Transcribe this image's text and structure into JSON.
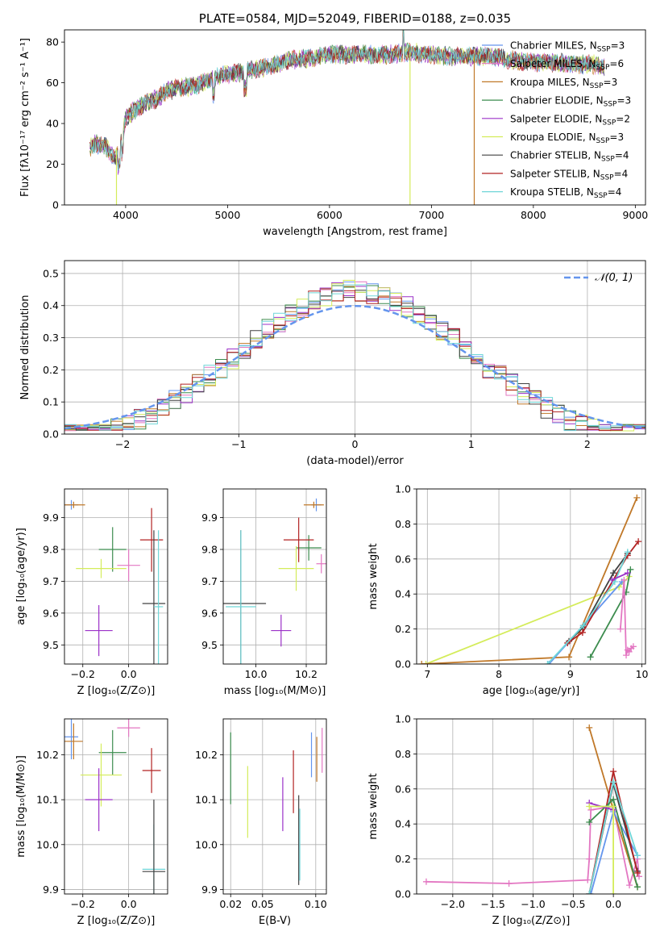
{
  "chart_data": [
    {
      "id": "spectrum",
      "type": "line",
      "title": "PLATE=0584, MJD=52049, FIBERID=0188, z=0.035",
      "xlabel": "wavelength [Angstrom, rest frame]",
      "ylabel": "Flux [fλ10⁻¹⁷ erg cm⁻² s⁻¹ A⁻¹]",
      "xlim": [
        3400,
        9100
      ],
      "ylim": [
        0,
        86
      ],
      "xticks": [
        4000,
        5000,
        6000,
        7000,
        8000,
        9000
      ],
      "yticks": [
        0,
        20,
        40,
        60,
        80
      ],
      "grid": false,
      "legend": "upper-right",
      "continuum": [
        [
          3650,
          28
        ],
        [
          3700,
          30
        ],
        [
          3800,
          29
        ],
        [
          3900,
          22
        ],
        [
          3950,
          30
        ],
        [
          4000,
          43
        ],
        [
          4100,
          47
        ],
        [
          4200,
          50
        ],
        [
          4300,
          52
        ],
        [
          4400,
          56
        ],
        [
          4500,
          57
        ],
        [
          4600,
          58
        ],
        [
          4700,
          59
        ],
        [
          4800,
          61
        ],
        [
          4900,
          63
        ],
        [
          5000,
          64
        ],
        [
          5200,
          66
        ],
        [
          5400,
          68
        ],
        [
          5600,
          71
        ],
        [
          5800,
          72
        ],
        [
          6000,
          74
        ],
        [
          6200,
          74
        ],
        [
          6400,
          74
        ],
        [
          6600,
          74
        ],
        [
          6800,
          75
        ],
        [
          7000,
          74
        ],
        [
          7200,
          73
        ],
        [
          7400,
          73
        ],
        [
          7600,
          73
        ],
        [
          7800,
          71
        ],
        [
          8000,
          70
        ],
        [
          8200,
          70
        ],
        [
          8400,
          69
        ],
        [
          8600,
          69
        ],
        [
          8700,
          68
        ]
      ],
      "series": [
        {
          "name": "Chabrier MILES, N_SSP=3",
          "label": "Chabrier MILES, N",
          "sub": "SSP",
          "suffix": "=3",
          "color": "#6495ED"
        },
        {
          "name": "Salpeter MILES, N_SSP=6",
          "label": "Salpeter MILES, N",
          "sub": "SSP",
          "suffix": "=6",
          "color": "#E377C2"
        },
        {
          "name": "Kroupa MILES, N_SSP=3",
          "label": "Kroupa MILES, N",
          "sub": "SSP",
          "suffix": "=3",
          "color": "#C07828"
        },
        {
          "name": "Chabrier ELODIE, N_SSP=3",
          "label": "Chabrier ELODIE, N",
          "sub": "SSP",
          "suffix": "=3",
          "color": "#3C8C4E"
        },
        {
          "name": "Salpeter ELODIE, N_SSP=2",
          "label": "Salpeter ELODIE, N",
          "sub": "SSP",
          "suffix": "=2",
          "color": "#9B30C8"
        },
        {
          "name": "Kroupa ELODIE, N_SSP=3",
          "label": "Kroupa ELODIE, N",
          "sub": "SSP",
          "suffix": "=3",
          "color": "#D4EC5A"
        },
        {
          "name": "Chabrier STELIB, N_SSP=4",
          "label": "Chabrier STELIB, N",
          "sub": "SSP",
          "suffix": "=4",
          "color": "#404040"
        },
        {
          "name": "Salpeter STELIB, N_SSP=4",
          "label": "Salpeter STELIB, N",
          "sub": "SSP",
          "suffix": "=4",
          "color": "#B22222"
        },
        {
          "name": "Kroupa STELIB, N_SSP=4",
          "label": "Kroupa STELIB, N",
          "sub": "SSP",
          "suffix": "=4",
          "color": "#6FD6D8"
        }
      ],
      "dropouts": [
        {
          "series": 5,
          "x": [
            3910,
            3920
          ],
          "ymin": 0,
          "ymax": 28
        },
        {
          "series": 5,
          "x": [
            6790,
            6800
          ],
          "ymin": 0,
          "ymax": 75
        },
        {
          "series": 2,
          "x": [
            7420,
            7430
          ],
          "ymin": 0,
          "ymax": 74
        }
      ]
    },
    {
      "id": "residuals",
      "type": "histogram",
      "xlabel": "(data-model)/error",
      "ylabel": "Normed distribution",
      "xlim": [
        -2.5,
        2.5
      ],
      "ylim": [
        0,
        0.54
      ],
      "xticks": [
        -2,
        -1,
        0,
        1,
        2
      ],
      "yticks": [
        0.0,
        0.1,
        0.2,
        0.3,
        0.4,
        0.5
      ],
      "grid": true,
      "legend": "upper-right",
      "bin_width": 0.1,
      "reference": {
        "name": "N(0,1)",
        "label": "𝒩(0, 1)",
        "color": "#6495ED",
        "mean": 0,
        "sigma": 1
      }
    },
    {
      "id": "age-vs-Z",
      "type": "errorbar",
      "xlabel": "Z [log₁₀(Z/Z⊙)]",
      "ylabel": "age  [log₁₀(age/yr)]",
      "xlim": [
        -0.28,
        0.17
      ],
      "ylim": [
        9.44,
        9.99
      ],
      "xticks": [
        -0.2,
        0.0
      ],
      "yticks": [
        9.5,
        9.6,
        9.7,
        9.8,
        9.9
      ],
      "grid": true,
      "points": [
        {
          "series": 0,
          "x": -0.25,
          "y": 9.94,
          "xerr": 0.03,
          "yerr": 0.015
        },
        {
          "series": 2,
          "x": -0.24,
          "y": 9.94,
          "xerr": 0.05,
          "yerr": 0.01
        },
        {
          "series": 3,
          "x": -0.07,
          "y": 9.8,
          "xerr": 0.06,
          "yerr": 0.07
        },
        {
          "series": 7,
          "x": 0.1,
          "y": 9.83,
          "xerr": 0.05,
          "yerr": 0.1
        },
        {
          "series": 1,
          "x": 0.0,
          "y": 9.75,
          "xerr": 0.05,
          "yerr": 0.05
        },
        {
          "series": 5,
          "x": -0.12,
          "y": 9.74,
          "xerr": 0.11,
          "yerr": 0.03
        },
        {
          "series": 6,
          "x": 0.11,
          "y": 9.63,
          "xerr": 0.05,
          "yerr": 0.23
        },
        {
          "series": 8,
          "x": 0.13,
          "y": 9.62,
          "xerr": 0.02,
          "yerr": 0.24
        },
        {
          "series": 4,
          "x": -0.13,
          "y": 9.545,
          "xerr": 0.06,
          "yerr": 0.08
        }
      ]
    },
    {
      "id": "age-vs-mass",
      "type": "errorbar",
      "xlabel": "mass [log₁₀(M/M⊙)]",
      "ylabel": "",
      "xlim": [
        9.87,
        10.28
      ],
      "ylim": [
        9.44,
        9.99
      ],
      "xticks": [
        10.0,
        10.2
      ],
      "yticks": [
        9.5,
        9.6,
        9.7,
        9.8,
        9.9
      ],
      "grid": true,
      "points": [
        {
          "series": 0,
          "x": 10.24,
          "y": 9.94,
          "xerr": 0.02,
          "yerr": 0.02
        },
        {
          "series": 2,
          "x": 10.23,
          "y": 9.94,
          "xerr": 0.04,
          "yerr": 0.01
        },
        {
          "series": 3,
          "x": 10.21,
          "y": 9.805,
          "xerr": 0.05,
          "yerr": 0.04
        },
        {
          "series": 7,
          "x": 10.17,
          "y": 9.83,
          "xerr": 0.06,
          "yerr": 0.07
        },
        {
          "series": 1,
          "x": 10.26,
          "y": 9.755,
          "xerr": 0.02,
          "yerr": 0.03
        },
        {
          "series": 5,
          "x": 10.16,
          "y": 9.74,
          "xerr": 0.07,
          "yerr": 0.07
        },
        {
          "series": 6,
          "x": 9.94,
          "y": 9.63,
          "xerr": 0.1,
          "yerr": 0.23
        },
        {
          "series": 8,
          "x": 9.94,
          "y": 9.62,
          "xerr": 0.06,
          "yerr": 0.24
        },
        {
          "series": 4,
          "x": 10.1,
          "y": 9.545,
          "xerr": 0.04,
          "yerr": 0.05
        }
      ]
    },
    {
      "id": "weight-vs-age",
      "type": "line",
      "xlabel": "age  [log₁₀(age/yr)]",
      "ylabel": "mass weight",
      "xlim": [
        6.85,
        10.05
      ],
      "ylim": [
        0,
        1.0
      ],
      "xticks": [
        7,
        8,
        9,
        10
      ],
      "yticks": [
        0.0,
        0.2,
        0.4,
        0.6,
        0.8,
        1.0
      ],
      "grid": true,
      "lines": [
        {
          "series": 5,
          "x": [
            6.98,
            9.68,
            9.82
          ],
          "y": [
            0.0,
            0.44,
            0.5
          ]
        },
        {
          "series": 2,
          "x": [
            6.92,
            8.98,
            9.93
          ],
          "y": [
            0.0,
            0.04,
            0.95
          ]
        },
        {
          "series": 0,
          "x": [
            8.7,
            9.18,
            9.72
          ],
          "y": [
            0.0,
            0.22,
            0.47
          ]
        },
        {
          "series": 6,
          "x": [
            8.98,
            9.18,
            9.6,
            9.8
          ],
          "y": [
            0.13,
            0.21,
            0.52,
            0.63
          ]
        },
        {
          "series": 7,
          "x": [
            8.96,
            9.17,
            9.8,
            9.95
          ],
          "y": [
            0.12,
            0.18,
            0.62,
            0.7
          ]
        },
        {
          "series": 8,
          "x": [
            8.68,
            9.18,
            9.62,
            9.8
          ],
          "y": [
            0.0,
            0.22,
            0.47,
            0.64
          ]
        },
        {
          "series": 3,
          "x": [
            9.28,
            9.78,
            9.84
          ],
          "y": [
            0.04,
            0.41,
            0.54
          ]
        },
        {
          "series": 4,
          "x": [
            9.58,
            9.8
          ],
          "y": [
            0.48,
            0.52
          ]
        },
        {
          "series": 1,
          "x": [
            9.7,
            9.75,
            9.78,
            9.8,
            9.82,
            9.85,
            9.88
          ],
          "y": [
            0.2,
            0.48,
            0.05,
            0.08,
            0.07,
            0.09,
            0.1
          ]
        }
      ]
    },
    {
      "id": "mass-vs-Z",
      "type": "errorbar",
      "xlabel": "Z [log₁₀(Z/Z⊙)]",
      "ylabel": "mass [log₁₀(M/M⊙)]",
      "xlim": [
        -0.28,
        0.17
      ],
      "ylim": [
        9.89,
        10.28
      ],
      "xticks": [
        -0.2,
        0.0
      ],
      "yticks": [
        9.9,
        10.0,
        10.1,
        10.2
      ],
      "grid": true,
      "points": [
        {
          "series": 0,
          "x": -0.25,
          "y": 10.24,
          "xerr": 0.03,
          "yerr": 0.05
        },
        {
          "series": 2,
          "x": -0.24,
          "y": 10.23,
          "xerr": 0.04,
          "yerr": 0.04
        },
        {
          "series": 3,
          "x": -0.07,
          "y": 10.205,
          "xerr": 0.06,
          "yerr": 0.05
        },
        {
          "series": 1,
          "x": 0.0,
          "y": 10.26,
          "xerr": 0.05,
          "yerr": 0.02
        },
        {
          "series": 7,
          "x": 0.1,
          "y": 10.165,
          "xerr": 0.04,
          "yerr": 0.05
        },
        {
          "series": 5,
          "x": -0.12,
          "y": 10.155,
          "xerr": 0.09,
          "yerr": 0.07
        },
        {
          "series": 4,
          "x": -0.13,
          "y": 10.1,
          "xerr": 0.06,
          "yerr": 0.07
        },
        {
          "series": 8,
          "x": 0.11,
          "y": 9.945,
          "xerr": 0.05,
          "yerr": 0.1
        },
        {
          "series": 6,
          "x": 0.11,
          "y": 9.94,
          "xerr": 0.05,
          "yerr": 0.16
        }
      ]
    },
    {
      "id": "mass-vs-ebv",
      "type": "errorbar",
      "xlabel": "E(B-V)",
      "ylabel": "",
      "xlim": [
        0.013,
        0.11
      ],
      "ylim": [
        9.89,
        10.28
      ],
      "xticks": [
        0.02,
        0.05,
        0.1
      ],
      "yticks": [
        9.9,
        10.0,
        10.1,
        10.2
      ],
      "grid": true,
      "points": [
        {
          "series": 3,
          "x": 0.02,
          "y": 10.17,
          "xerr": 0,
          "yerr": 0.08
        },
        {
          "series": 5,
          "x": 0.036,
          "y": 10.095,
          "xerr": 0,
          "yerr": 0.08
        },
        {
          "series": 4,
          "x": 0.069,
          "y": 10.09,
          "xerr": 0,
          "yerr": 0.06
        },
        {
          "series": 7,
          "x": 0.079,
          "y": 10.14,
          "xerr": 0,
          "yerr": 0.07
        },
        {
          "series": 6,
          "x": 0.084,
          "y": 10.01,
          "xerr": 0,
          "yerr": 0.1
        },
        {
          "series": 8,
          "x": 0.085,
          "y": 10.0,
          "xerr": 0,
          "yerr": 0.08
        },
        {
          "series": 0,
          "x": 0.096,
          "y": 10.2,
          "xerr": 0,
          "yerr": 0.05
        },
        {
          "series": 2,
          "x": 0.101,
          "y": 10.19,
          "xerr": 0,
          "yerr": 0.05
        },
        {
          "series": 1,
          "x": 0.106,
          "y": 10.21,
          "xerr": 0,
          "yerr": 0.05
        }
      ]
    },
    {
      "id": "weight-vs-Z",
      "type": "line",
      "xlabel": "Z [log₁₀(Z/Z⊙)]",
      "ylabel": "mass weight",
      "xlim": [
        -2.45,
        0.4
      ],
      "ylim": [
        0,
        1.0
      ],
      "xticks": [
        -2.0,
        -1.5,
        -1.0,
        -0.5,
        0.0
      ],
      "yticks": [
        0.0,
        0.2,
        0.4,
        0.6,
        0.8,
        1.0
      ],
      "grid": true,
      "lines": [
        {
          "series": 1,
          "x": [
            -2.33,
            -1.3,
            -0.32,
            -0.3,
            -0.28,
            0.0,
            0.2,
            0.3,
            0.32
          ],
          "y": [
            0.07,
            0.06,
            0.08,
            0.2,
            0.48,
            0.5,
            0.05,
            0.2,
            0.1
          ]
        },
        {
          "series": 2,
          "x": [
            -0.3,
            0.0,
            0.3
          ],
          "y": [
            0.95,
            0.48,
            0.04
          ]
        },
        {
          "series": 0,
          "x": [
            -0.28,
            0.0,
            0.3
          ],
          "y": [
            0.0,
            0.47,
            0.22
          ]
        },
        {
          "series": 6,
          "x": [
            -0.3,
            0.0,
            0.3
          ],
          "y": [
            0.0,
            0.63,
            0.13
          ]
        },
        {
          "series": 7,
          "x": [
            -0.3,
            0.0,
            0.3
          ],
          "y": [
            0.0,
            0.7,
            0.12
          ]
        },
        {
          "series": 8,
          "x": [
            -0.3,
            0.0,
            0.3
          ],
          "y": [
            0.0,
            0.64,
            0.22
          ]
        },
        {
          "series": 3,
          "x": [
            -0.3,
            0.0,
            0.3
          ],
          "y": [
            0.41,
            0.54,
            0.04
          ]
        },
        {
          "series": 4,
          "x": [
            -0.3,
            0.0
          ],
          "y": [
            0.52,
            0.48
          ]
        },
        {
          "series": 5,
          "x": [
            -0.3,
            0.0,
            0.0
          ],
          "y": [
            0.5,
            0.5,
            0.0
          ]
        }
      ]
    }
  ]
}
